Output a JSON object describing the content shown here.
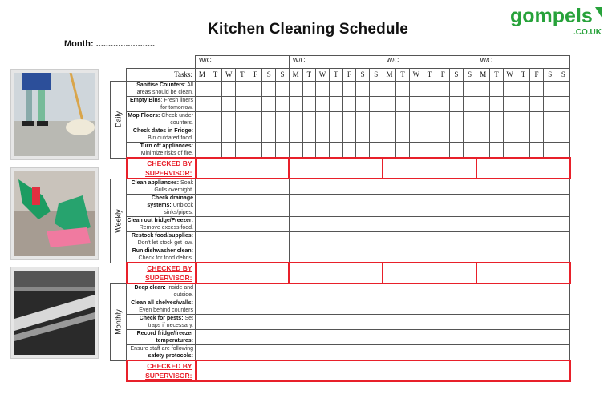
{
  "title": "Kitchen Cleaning Schedule",
  "month_label": "Month: ........................",
  "logo": {
    "text": "gompels",
    "sub": ".CO.UK",
    "color": "#27a23a"
  },
  "week_label": "W/C",
  "tasks_header": "Tasks:",
  "days": [
    "M",
    "T",
    "W",
    "T",
    "F",
    "S",
    "S"
  ],
  "checked_label": [
    "CHECKED BY",
    "SUPERVISOR:"
  ],
  "accent_red": "#e8202a",
  "sections": [
    {
      "name": "Daily",
      "tasks": [
        {
          "bold": "Sanitise Counters",
          "rest": ": All areas should be clean."
        },
        {
          "bold": "Empty Bins",
          "rest": ": Fresh liners for tomorrow."
        },
        {
          "bold": "Mop Floors:",
          "rest": " Check under counters."
        },
        {
          "bold": "Check dates in Fridge:",
          "rest": " Bin outdated food."
        },
        {
          "bold": "Turn off appliances:",
          "rest": " Minimize risks of fire."
        }
      ]
    },
    {
      "name": "Weekly",
      "tasks": [
        {
          "bold": "Clean appliances:",
          "rest": " Soak Grills overnight."
        },
        {
          "bold": "Check drainage systems:",
          "rest": " Unblock sinks/pipes."
        },
        {
          "bold": "Clean out fridge/Freezer:",
          "rest": " Remove excess food."
        },
        {
          "bold": "Restock food/supplies:",
          "rest": " Don't let stock get low."
        },
        {
          "bold": "Run dishwasher clean:",
          "rest": " Check for food debris."
        }
      ]
    },
    {
      "name": "Monthly",
      "tasks": [
        {
          "bold": "Deep clean:",
          "rest": " Inside and outside."
        },
        {
          "bold": "Clean all shelves/walls:",
          "rest": " Even behind counters"
        },
        {
          "bold": "Check for pests:",
          "rest": " Set traps if necessary."
        },
        {
          "bold": "Record fridge/freezer temperatures:",
          "rest": ""
        },
        {
          "pre": "Ensure staff are following ",
          "bold": "safety protocols:",
          "rest": ""
        }
      ]
    }
  ]
}
